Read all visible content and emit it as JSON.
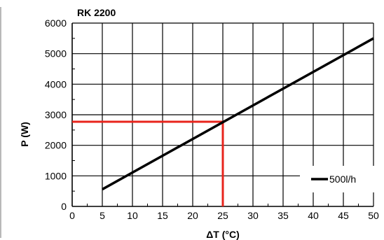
{
  "chart_data": {
    "type": "line",
    "title": "RK 2200",
    "xlabel": "ΔT (°C)",
    "ylabel": "P (W)",
    "xlim": [
      0,
      50
    ],
    "ylim": [
      0,
      6000
    ],
    "x_ticks": [
      0,
      5,
      10,
      15,
      20,
      25,
      30,
      35,
      40,
      45,
      50
    ],
    "y_ticks": [
      0,
      1000,
      2000,
      3000,
      4000,
      5000,
      6000
    ],
    "grid": true,
    "legend_position": "bottom-right",
    "series": [
      {
        "name": "500l/h",
        "color": "#000000",
        "x": [
          5,
          50
        ],
        "y": [
          560,
          5500
        ]
      }
    ],
    "annotations": [
      {
        "type": "reference-lines",
        "color": "#e8241c",
        "x": 25,
        "y": 2770
      }
    ]
  }
}
